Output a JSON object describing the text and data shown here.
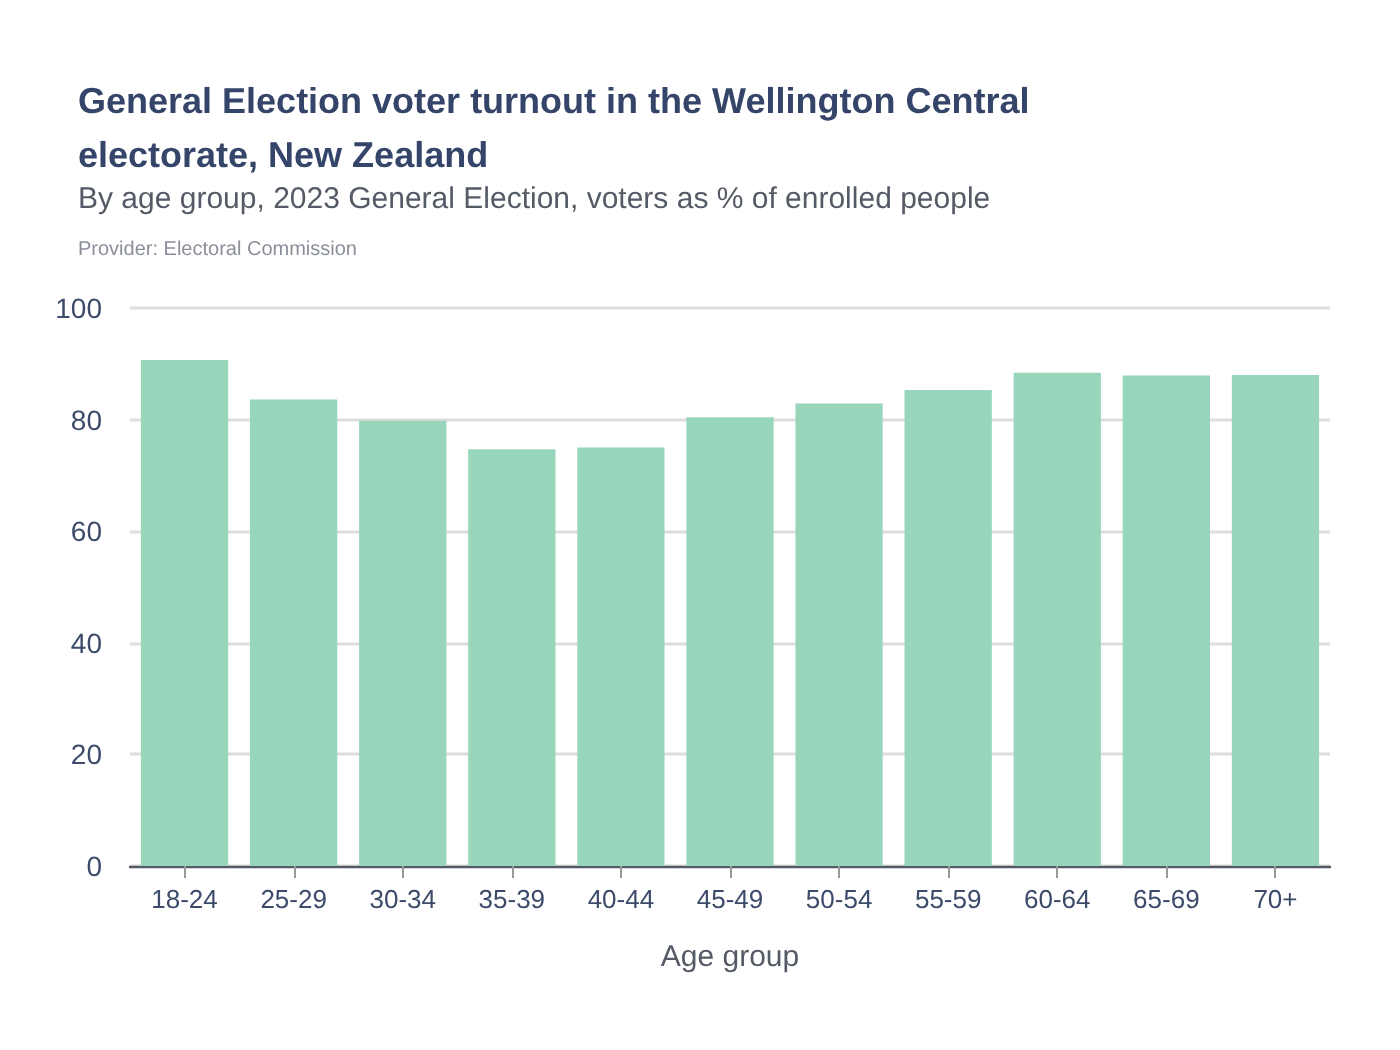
{
  "chart_data": {
    "type": "bar",
    "title": "General Election voter turnout in the Wellington Central electorate, New Zealand",
    "subtitle": "By age group, 2023 General Election, voters as % of enrolled people",
    "annotations": [
      "Provider: Electoral Commission"
    ],
    "xlabel": "Age group",
    "categories": [
      "18-24",
      "25-29",
      "30-34",
      "35-39",
      "40-44",
      "45-49",
      "50-54",
      "55-59",
      "60-64",
      "65-69",
      "70+"
    ],
    "values": [
      90.7,
      83.6,
      79.8,
      74.7,
      75.0,
      80.4,
      82.9,
      85.3,
      88.4,
      87.9,
      88.0
    ],
    "color": "#98d6bb",
    "ylim": [
      0,
      100
    ],
    "yticks": [
      0,
      20,
      40,
      60,
      80,
      100
    ],
    "grid": "y"
  }
}
